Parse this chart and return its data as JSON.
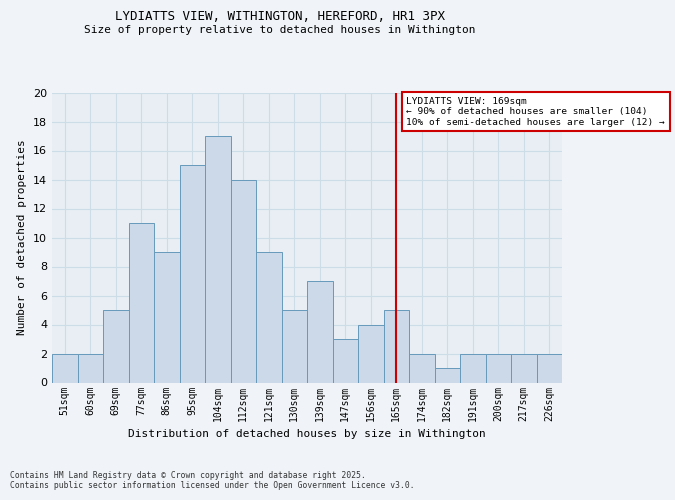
{
  "title1": "LYDIATTS VIEW, WITHINGTON, HEREFORD, HR1 3PX",
  "title2": "Size of property relative to detached houses in Withington",
  "xlabel": "Distribution of detached houses by size in Withington",
  "ylabel": "Number of detached properties",
  "categories": [
    "51sqm",
    "60sqm",
    "69sqm",
    "77sqm",
    "86sqm",
    "95sqm",
    "104sqm",
    "112sqm",
    "121sqm",
    "130sqm",
    "139sqm",
    "147sqm",
    "156sqm",
    "165sqm",
    "174sqm",
    "182sqm",
    "191sqm",
    "200sqm",
    "217sqm",
    "226sqm"
  ],
  "values": [
    2,
    2,
    5,
    11,
    9,
    15,
    17,
    14,
    9,
    5,
    7,
    3,
    4,
    5,
    2,
    1,
    2,
    2,
    2,
    2
  ],
  "bar_color": "#ccd9e8",
  "bar_edge_color": "#6699bb",
  "vline_index": 13,
  "vline_color": "#cc0000",
  "annotation_title": "LYDIATTS VIEW: 169sqm",
  "annotation_line1": "← 90% of detached houses are smaller (104)",
  "annotation_line2": "10% of semi-detached houses are larger (12) →",
  "annotation_box_color": "#ffffff",
  "annotation_box_edge_color": "#cc0000",
  "grid_color": "#ccdde8",
  "plot_bg_color": "#e8eef4",
  "fig_bg_color": "#f0f4f8",
  "ylim": [
    0,
    20
  ],
  "yticks": [
    0,
    2,
    4,
    6,
    8,
    10,
    12,
    14,
    16,
    18,
    20
  ],
  "footer1": "Contains HM Land Registry data © Crown copyright and database right 2025.",
  "footer2": "Contains public sector information licensed under the Open Government Licence v3.0."
}
